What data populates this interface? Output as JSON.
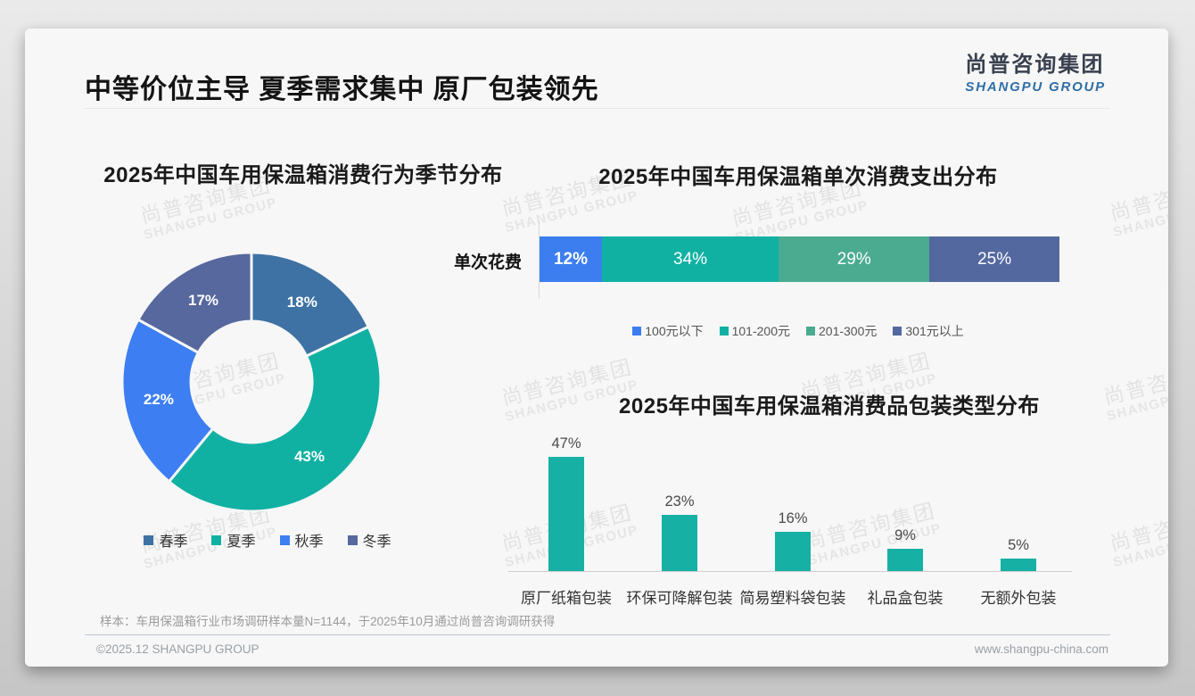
{
  "page": {
    "title": "中等价位主导 夏季需求集中 原厂包装领先",
    "logo": {
      "cn": "尚普咨询集团",
      "en": "SHANGPU GROUP"
    },
    "watermark": {
      "line1": "尚普咨询集团",
      "line2": "SHANGPU GROUP"
    },
    "footer": {
      "note": "样本：车用保温箱行业市场调研样本量N=1144，于2025年10月通过尚普咨询调研获得",
      "copyright": "©2025.12 SHANGPU GROUP",
      "website": "www.shangpu-china.com"
    }
  },
  "chart_data": [
    {
      "type": "pie",
      "title": "2025年中国车用保温箱消费行为季节分布",
      "labels": [
        "春季",
        "夏季",
        "秋季",
        "冬季"
      ],
      "values": [
        18,
        43,
        22,
        17
      ],
      "value_labels": [
        "18%",
        "43%",
        "22%",
        "17%"
      ],
      "colors": [
        "#3e72a5",
        "#10b1a3",
        "#3d7ef2",
        "#56689e"
      ],
      "donut": true,
      "legend_position": "bottom"
    },
    {
      "type": "bar",
      "orientation": "horizontal-stacked",
      "title": "2025年中国车用保温箱单次消费支出分布",
      "axis_label": "单次花费",
      "categories": [
        "100元以下",
        "101-200元",
        "201-300元",
        "301元以上"
      ],
      "values": [
        12,
        34,
        29,
        25
      ],
      "value_labels": [
        "12%",
        "34%",
        "29%",
        "25%"
      ],
      "colors": [
        "#3c7ef0",
        "#10b1a3",
        "#4aab91",
        "#5468a0"
      ],
      "legend_position": "bottom"
    },
    {
      "type": "bar",
      "title": "2025年中国车用保温箱消费品包装类型分布",
      "categories": [
        "原厂纸箱包装",
        "环保可降解包装",
        "简易塑料袋包装",
        "礼品盒包装",
        "无额外包装"
      ],
      "values": [
        47,
        23,
        16,
        9,
        5
      ],
      "value_labels": [
        "47%",
        "23%",
        "16%",
        "9%",
        "5%"
      ],
      "bar_color": "#17b0a5",
      "ylim": [
        0,
        50
      ]
    }
  ]
}
